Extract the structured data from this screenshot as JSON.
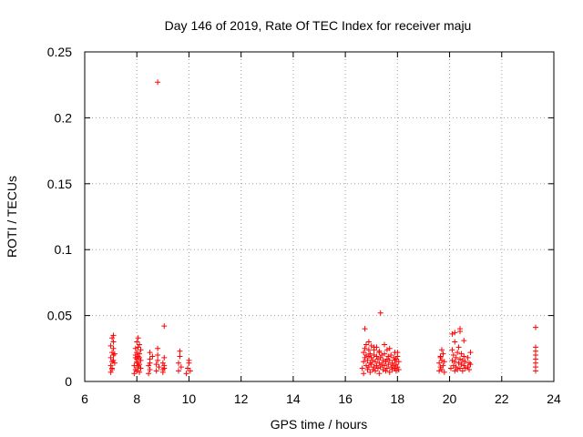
{
  "chart_data": {
    "type": "scatter",
    "title": "Day 146 of 2019, Rate Of TEC Index for receiver maju",
    "xlabel": "GPS time / hours",
    "ylabel": "ROTI / TECUs",
    "xlim": [
      6,
      24
    ],
    "ylim": [
      0,
      0.25
    ],
    "xticks": [
      "6",
      "8",
      "10",
      "12",
      "14",
      "16",
      "18",
      "20",
      "22",
      "24"
    ],
    "yticks": [
      "0",
      "0.05",
      "0.1",
      "0.15",
      "0.2",
      "0.25"
    ],
    "grid": true,
    "marker": "+",
    "color": "#ff0000",
    "series": [
      {
        "name": "ROTI",
        "x": [
          7.0,
          7.0,
          7.0,
          7.05,
          7.05,
          7.05,
          7.1,
          7.1,
          7.1,
          7.1,
          7.1,
          7.15,
          7.15,
          7.0,
          7.05,
          7.9,
          7.9,
          7.95,
          7.95,
          7.95,
          8.0,
          8.0,
          8.0,
          8.0,
          8.0,
          8.05,
          8.05,
          8.05,
          8.05,
          8.1,
          8.1,
          8.1,
          8.1,
          8.15,
          8.15,
          8.15,
          7.95,
          8.0,
          8.05,
          8.1,
          8.45,
          8.45,
          8.5,
          8.5,
          8.5,
          8.5,
          8.6,
          8.75,
          8.75,
          8.8,
          8.8,
          8.8,
          8.85,
          9.0,
          9.0,
          9.05,
          9.05,
          9.05,
          9.0,
          9.6,
          9.6,
          9.65,
          9.65,
          9.7,
          9.9,
          9.95,
          10.0,
          10.0,
          10.05,
          16.65,
          16.7,
          16.7,
          16.7,
          16.75,
          16.75,
          16.8,
          16.8,
          16.8,
          16.85,
          16.85,
          16.9,
          16.9,
          16.9,
          16.95,
          16.95,
          16.95,
          17.0,
          17.0,
          17.0,
          17.05,
          17.05,
          17.1,
          17.1,
          17.1,
          17.15,
          17.15,
          17.2,
          17.2,
          17.2,
          17.25,
          17.25,
          17.3,
          17.3,
          17.3,
          17.35,
          17.35,
          17.4,
          17.4,
          17.45,
          17.45,
          17.5,
          17.5,
          17.55,
          17.55,
          17.6,
          17.6,
          17.6,
          17.65,
          17.65,
          17.7,
          17.7,
          17.75,
          17.75,
          17.8,
          17.8,
          17.85,
          17.85,
          17.9,
          17.9,
          17.95,
          17.95,
          18.0,
          18.0,
          18.05,
          18.05,
          17.9,
          17.95,
          17.7,
          17.5,
          17.3,
          17.1,
          16.9,
          19.6,
          19.6,
          19.65,
          19.65,
          19.7,
          19.7,
          19.75,
          19.75,
          19.8,
          19.8,
          19.7,
          19.65,
          20.05,
          20.1,
          20.1,
          20.15,
          20.15,
          20.2,
          20.2,
          20.2,
          20.25,
          20.25,
          20.3,
          20.3,
          20.35,
          20.35,
          20.4,
          20.4,
          20.45,
          20.45,
          20.5,
          20.5,
          20.55,
          20.55,
          20.6,
          20.6,
          20.7,
          20.7,
          20.75,
          20.75,
          20.8,
          20.8,
          20.1,
          20.4,
          20.55,
          23.3,
          23.3,
          23.3,
          23.3,
          23.3,
          23.3,
          23.3,
          8.8,
          17.35,
          9.05,
          16.75,
          18.0,
          20.2,
          20.4,
          23.3,
          7.05
        ],
        "y": [
          0.007,
          0.012,
          0.018,
          0.022,
          0.015,
          0.01,
          0.025,
          0.02,
          0.016,
          0.03,
          0.035,
          0.014,
          0.021,
          0.027,
          0.009,
          0.006,
          0.012,
          0.018,
          0.025,
          0.009,
          0.014,
          0.022,
          0.03,
          0.008,
          0.017,
          0.026,
          0.011,
          0.019,
          0.033,
          0.013,
          0.021,
          0.007,
          0.028,
          0.016,
          0.024,
          0.01,
          0.02,
          0.015,
          0.012,
          0.018,
          0.006,
          0.012,
          0.017,
          0.022,
          0.009,
          0.014,
          0.019,
          0.008,
          0.013,
          0.02,
          0.025,
          0.016,
          0.011,
          0.007,
          0.014,
          0.01,
          0.018,
          0.012,
          0.009,
          0.008,
          0.014,
          0.019,
          0.023,
          0.011,
          0.006,
          0.01,
          0.014,
          0.016,
          0.008,
          0.01,
          0.015,
          0.022,
          0.006,
          0.018,
          0.025,
          0.012,
          0.02,
          0.028,
          0.009,
          0.016,
          0.011,
          0.019,
          0.024,
          0.007,
          0.014,
          0.021,
          0.013,
          0.018,
          0.027,
          0.009,
          0.016,
          0.011,
          0.02,
          0.024,
          0.008,
          0.015,
          0.012,
          0.019,
          0.026,
          0.01,
          0.017,
          0.006,
          0.014,
          0.022,
          0.011,
          0.018,
          0.013,
          0.02,
          0.009,
          0.016,
          0.012,
          0.021,
          0.008,
          0.015,
          0.01,
          0.017,
          0.024,
          0.013,
          0.019,
          0.007,
          0.016,
          0.011,
          0.02,
          0.009,
          0.014,
          0.012,
          0.018,
          0.01,
          0.016,
          0.008,
          0.013,
          0.011,
          0.019,
          0.009,
          0.015,
          0.022,
          0.017,
          0.025,
          0.028,
          0.023,
          0.026,
          0.03,
          0.008,
          0.014,
          0.011,
          0.019,
          0.009,
          0.016,
          0.012,
          0.021,
          0.007,
          0.015,
          0.024,
          0.018,
          0.01,
          0.016,
          0.024,
          0.012,
          0.02,
          0.008,
          0.015,
          0.03,
          0.011,
          0.018,
          0.009,
          0.022,
          0.014,
          0.026,
          0.01,
          0.017,
          0.013,
          0.021,
          0.008,
          0.016,
          0.012,
          0.019,
          0.01,
          0.015,
          0.011,
          0.018,
          0.009,
          0.014,
          0.022,
          0.013,
          0.036,
          0.038,
          0.031,
          0.008,
          0.011,
          0.014,
          0.017,
          0.02,
          0.023,
          0.026,
          0.227,
          0.052,
          0.042,
          0.04,
          0.022,
          0.037,
          0.04,
          0.041,
          0.033
        ]
      }
    ]
  }
}
